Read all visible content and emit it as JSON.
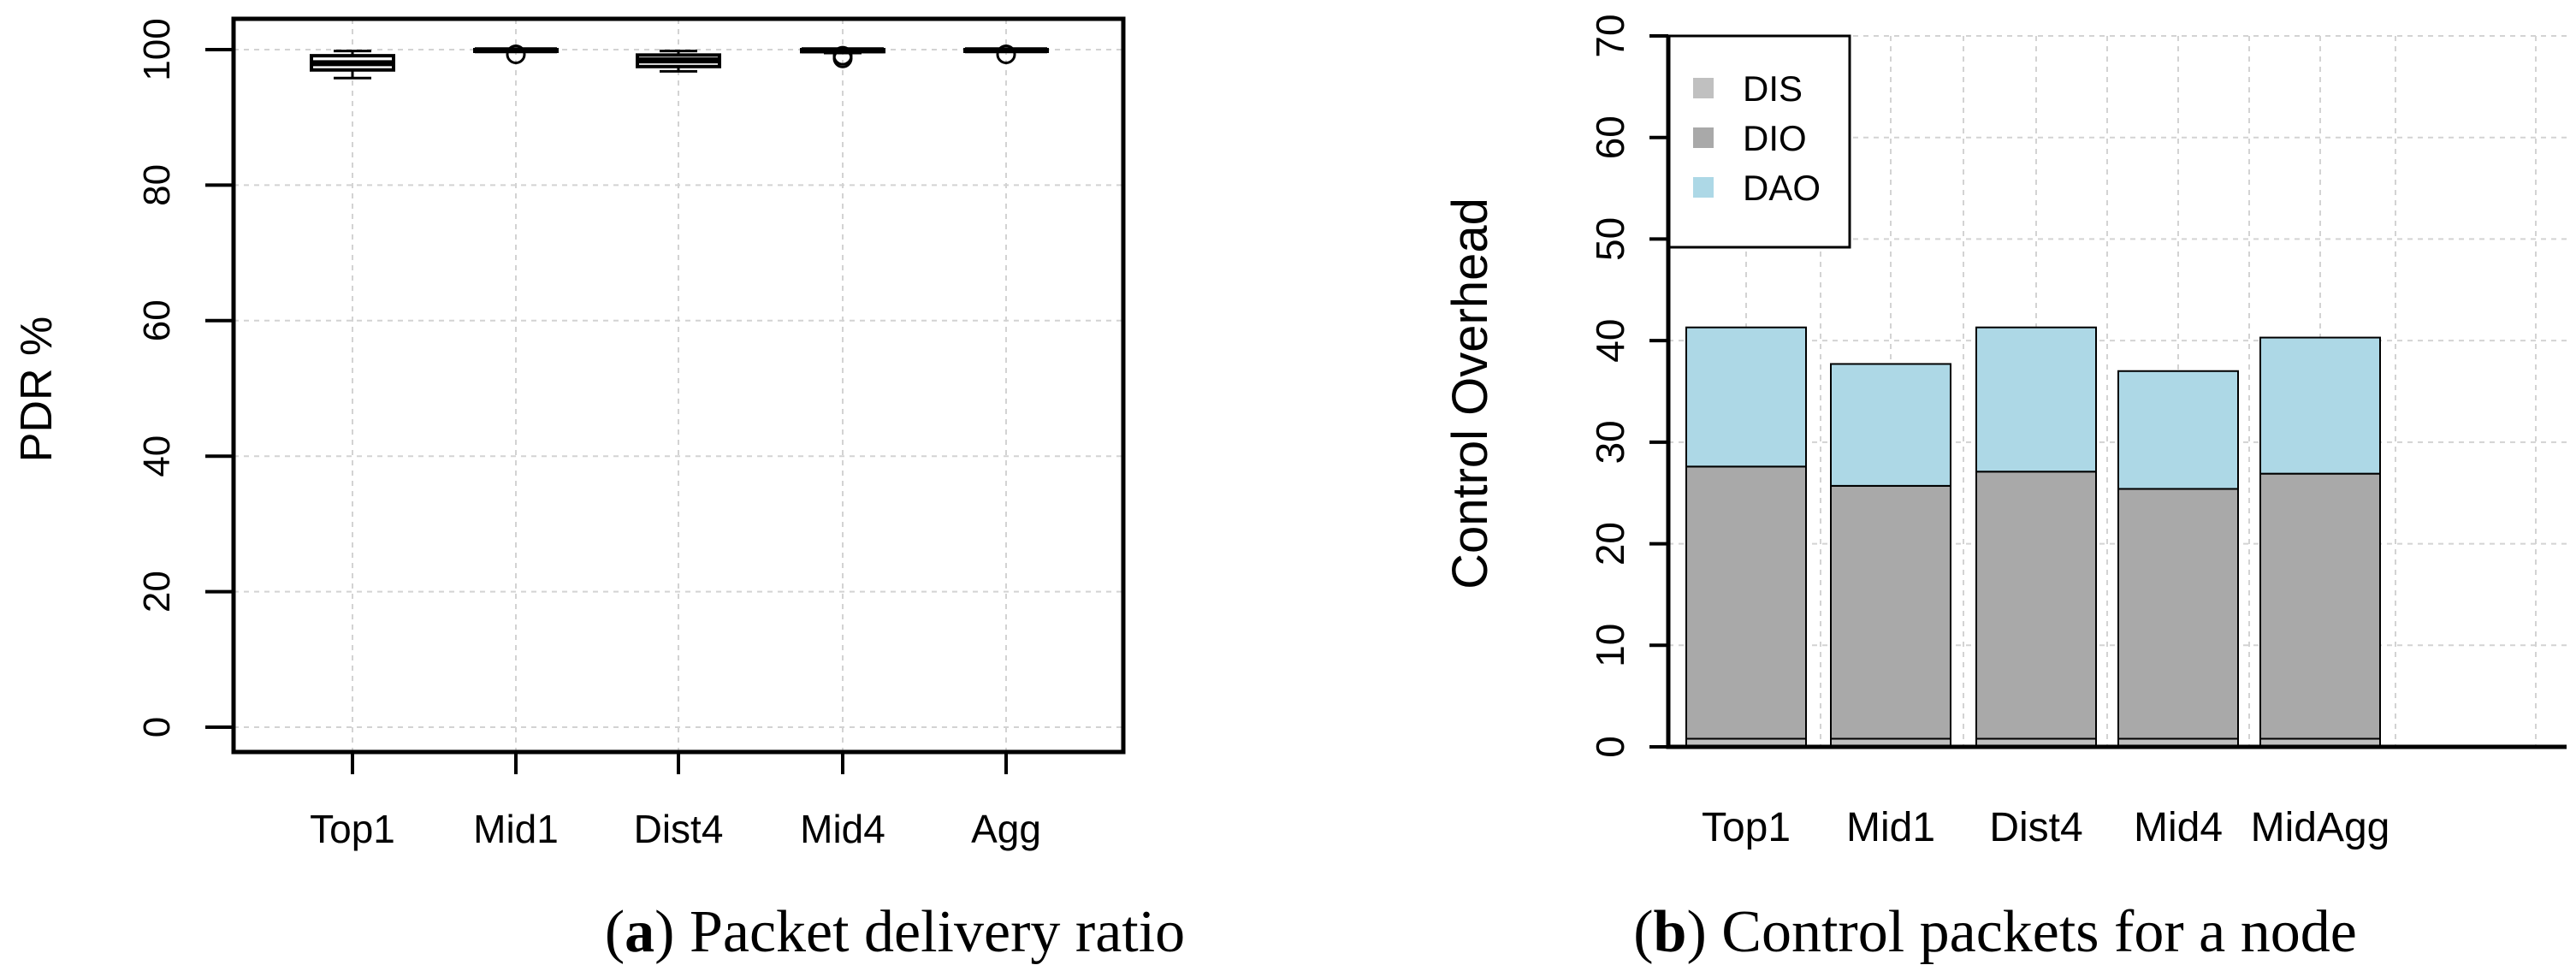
{
  "caption_a": {
    "label": "a",
    "text": ") Packet delivery ratio"
  },
  "caption_b": {
    "label": "b",
    "text": ") Control packets for a node"
  },
  "chart_data": [
    {
      "type": "box",
      "title": "",
      "caption": "(a) Packet delivery ratio",
      "xlabel": "",
      "ylabel": "PDR %",
      "ylim": [
        0,
        100
      ],
      "yticks": [
        0,
        20,
        40,
        60,
        80,
        100
      ],
      "grid": true,
      "categories": [
        "Top1",
        "Mid1",
        "Dist4",
        "Mid4",
        "Agg"
      ],
      "boxes": [
        {
          "name": "Top1",
          "whisker_low": 95.8,
          "q1": 97.0,
          "median": 98.0,
          "q3": 99.1,
          "whisker_high": 99.8,
          "outliers": []
        },
        {
          "name": "Mid1",
          "whisker_low": 99.7,
          "q1": 99.8,
          "median": 99.9,
          "q3": 100.0,
          "whisker_high": 100.0,
          "outliers": [
            99.3
          ]
        },
        {
          "name": "Dist4",
          "whisker_low": 96.8,
          "q1": 97.5,
          "median": 98.4,
          "q3": 99.2,
          "whisker_high": 99.8,
          "outliers": []
        },
        {
          "name": "Mid4",
          "whisker_low": 99.5,
          "q1": 99.7,
          "median": 99.9,
          "q3": 100.0,
          "whisker_high": 100.0,
          "outliers": [
            98.7,
            99.1
          ]
        },
        {
          "name": "Agg",
          "whisker_low": 99.7,
          "q1": 99.8,
          "median": 99.9,
          "q3": 100.0,
          "whisker_high": 100.0,
          "outliers": [
            99.3
          ]
        }
      ]
    },
    {
      "type": "bar",
      "stacked": true,
      "title": "",
      "caption": "(b) Control packets for a node",
      "xlabel": "",
      "ylabel": "Control Overhead",
      "ylim": [
        0,
        70
      ],
      "yticks": [
        0,
        10,
        20,
        30,
        40,
        50,
        60,
        70
      ],
      "grid": true,
      "legend_position": "top-left",
      "categories": [
        "Top1",
        "Mid1",
        "Dist4",
        "Mid4",
        "MidAgg"
      ],
      "series": [
        {
          "name": "DIS",
          "color": "#c0c0c0",
          "values": [
            0.8,
            0.8,
            0.8,
            0.8,
            0.8
          ]
        },
        {
          "name": "DIO",
          "color": "#a9a9a9",
          "values": [
            26.8,
            24.9,
            26.3,
            24.6,
            26.1
          ]
        },
        {
          "name": "DAO",
          "color": "#add8e6",
          "values": [
            13.7,
            12.0,
            14.2,
            11.6,
            13.4
          ]
        }
      ]
    }
  ]
}
